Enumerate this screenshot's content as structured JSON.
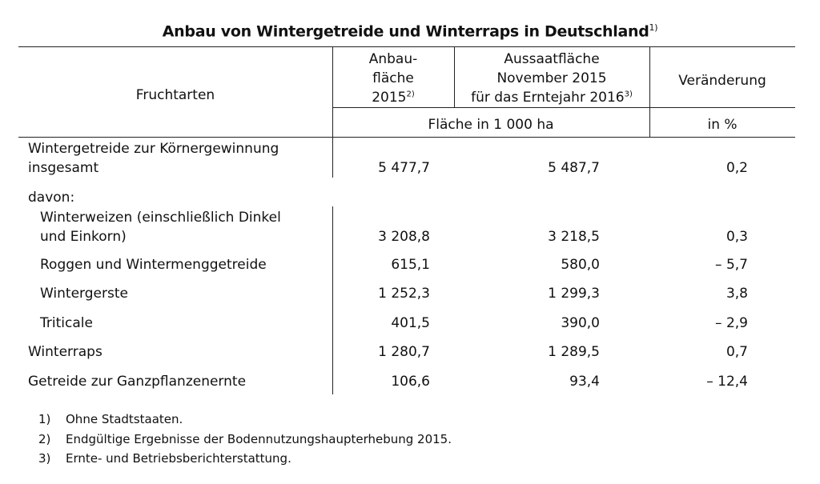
{
  "title": "Anbau von Wintergetreide und Winterraps in Deutschland",
  "title_footnote": "1)",
  "header": {
    "col_crop": "Fruchtarten",
    "col_area_line1": "Anbau-",
    "col_area_line2": "fläche",
    "col_area_line3": "2015",
    "col_area_fn": "2)",
    "col_sowing_line1": "Aussaatfläche",
    "col_sowing_line2": "November 2015",
    "col_sowing_line3": "für das Erntejahr 2016",
    "col_sowing_fn": "3)",
    "col_change": "Veränderung",
    "unit_area": "Fläche in 1 000 ha",
    "unit_change": "in %"
  },
  "rows": {
    "total_line1": "Wintergetreide zur Körnergewinnung",
    "total_line2": "insgesamt",
    "total_area": "5 477,7",
    "total_sowing": "5 487,7",
    "total_change": "0,2",
    "davon": "davon:",
    "wheat_line1": "Winterweizen (einschließlich Dinkel",
    "wheat_line2": "und Einkorn)",
    "wheat_area": "3 208,8",
    "wheat_sowing": "3 218,5",
    "wheat_change": "0,3",
    "rye_label": "Roggen und Wintermenggetreide",
    "rye_area": "615,1",
    "rye_sowing": "580,0",
    "rye_change": "– 5,7",
    "barley_label": "Wintergerste",
    "barley_area": "1 252,3",
    "barley_sowing": "1 299,3",
    "barley_change": "3,8",
    "triticale_label": "Triticale",
    "triticale_area": "401,5",
    "triticale_sowing": "390,0",
    "triticale_change": "– 2,9",
    "rapeseed_label": "Winterraps",
    "rapeseed_area": "1 280,7",
    "rapeseed_sowing": "1 289,5",
    "rapeseed_change": "0,7",
    "wholecrop_label": "Getreide zur Ganzpflanzenernte",
    "wholecrop_area": "106,6",
    "wholecrop_sowing": "93,4",
    "wholecrop_change": "– 12,4"
  },
  "footnotes": [
    {
      "num": "1)",
      "text": "Ohne Stadtstaaten."
    },
    {
      "num": "2)",
      "text": "Endgültige Ergebnisse der Bodennutzungshaupterhebung 2015."
    },
    {
      "num": "3)",
      "text": "Ernte- und Betriebsberichterstattung."
    }
  ]
}
